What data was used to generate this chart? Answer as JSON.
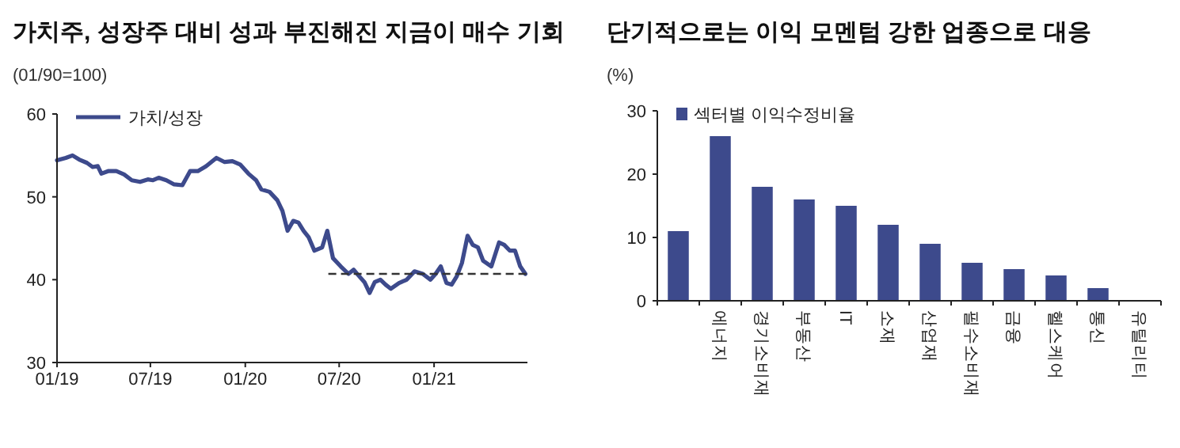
{
  "chart_data": [
    {
      "type": "line",
      "title": "가치주, 성장주 대비 성과 부진해진 지금이 매수 기회",
      "ylabel": "(01/90=100)",
      "legend": "top left",
      "xlim": [
        "2019-01-01",
        "2021-07-01"
      ],
      "ylim": [
        30,
        60
      ],
      "yticks": [
        30,
        40,
        50,
        60
      ],
      "xticks": [
        {
          "value": "2019-01-01",
          "label": "01/19"
        },
        {
          "value": "2019-07-01",
          "label": "07/19"
        },
        {
          "value": "2020-01-01",
          "label": "01/20"
        },
        {
          "value": "2020-07-01",
          "label": "07/20"
        },
        {
          "value": "2021-01-01",
          "label": "01/21"
        }
      ],
      "series": [
        {
          "name": "가치/성장",
          "color": "#3d4a8c",
          "x": [
            "2019-01-01",
            "2019-01-18",
            "2019-01-31",
            "2019-02-13",
            "2019-02-28",
            "2019-03-11",
            "2019-03-21",
            "2019-03-28",
            "2019-04-10",
            "2019-04-26",
            "2019-05-11",
            "2019-05-26",
            "2019-06-11",
            "2019-06-26",
            "2019-07-06",
            "2019-07-17",
            "2019-08-01",
            "2019-08-16",
            "2019-09-01",
            "2019-09-16",
            "2019-10-01",
            "2019-10-17",
            "2019-11-06",
            "2019-11-22",
            "2019-12-07",
            "2019-12-22",
            "2020-01-07",
            "2020-01-22",
            "2020-02-01",
            "2020-02-17",
            "2020-03-03",
            "2020-03-13",
            "2020-03-23",
            "2020-04-03",
            "2020-04-13",
            "2020-04-23",
            "2020-05-03",
            "2020-05-14",
            "2020-05-29",
            "2020-06-08",
            "2020-06-19",
            "2020-07-04",
            "2020-07-19",
            "2020-07-29",
            "2020-08-09",
            "2020-08-19",
            "2020-08-29",
            "2020-09-08",
            "2020-09-19",
            "2020-09-29",
            "2020-10-09",
            "2020-10-25",
            "2020-11-09",
            "2020-11-24",
            "2020-12-10",
            "2020-12-25",
            "2021-01-04",
            "2021-01-14",
            "2021-01-25",
            "2021-02-04",
            "2021-02-14",
            "2021-02-24",
            "2021-03-07",
            "2021-03-17",
            "2021-03-27",
            "2021-04-06",
            "2021-04-22",
            "2021-05-07",
            "2021-05-17",
            "2021-05-28",
            "2021-06-07",
            "2021-06-17",
            "2021-06-27"
          ],
          "values": [
            54.4,
            54.7,
            55.0,
            54.5,
            54.1,
            53.6,
            53.7,
            52.8,
            53.1,
            53.1,
            52.7,
            52.0,
            51.8,
            52.1,
            52.0,
            52.3,
            52.0,
            51.5,
            51.4,
            53.1,
            53.1,
            53.7,
            54.7,
            54.2,
            54.3,
            53.9,
            52.8,
            52.0,
            50.9,
            50.6,
            49.6,
            48.3,
            45.9,
            47.1,
            46.9,
            45.9,
            45.1,
            43.5,
            43.9,
            45.9,
            42.6,
            41.6,
            40.7,
            41.2,
            40.4,
            39.7,
            38.4,
            39.7,
            40.0,
            39.4,
            38.9,
            39.6,
            40.0,
            41.0,
            40.7,
            40.0,
            40.7,
            41.6,
            39.6,
            39.4,
            40.4,
            42.0,
            45.3,
            44.2,
            43.9,
            42.3,
            41.6,
            44.5,
            44.2,
            43.5,
            43.5,
            41.6,
            40.7
          ]
        },
        {
          "color": "#333333",
          "line_style": "dashed",
          "x": [
            "2020-06-10",
            "2021-07-01"
          ],
          "values": [
            40.7,
            40.7
          ]
        }
      ]
    },
    {
      "type": "bar",
      "title": "단기적으로는 이익 모멘텀 강한 업종으로 대응",
      "ylabel": "(%)",
      "legend": "top left",
      "ylim": [
        0,
        30
      ],
      "yticks": [
        0,
        10,
        20,
        30
      ],
      "categories": [
        null,
        "에너지",
        "경기소비재",
        "부동산",
        "IT",
        "소재",
        "산업재",
        "필수소비재",
        "금융",
        "헬스케어",
        "통신",
        "유틸리티"
      ],
      "series": [
        {
          "name": "섹터별 이익수정비율",
          "color": "#3d4a8c",
          "values": [
            11,
            26,
            18,
            16,
            15,
            12,
            9,
            6,
            5,
            4,
            2,
            0
          ]
        }
      ]
    }
  ]
}
